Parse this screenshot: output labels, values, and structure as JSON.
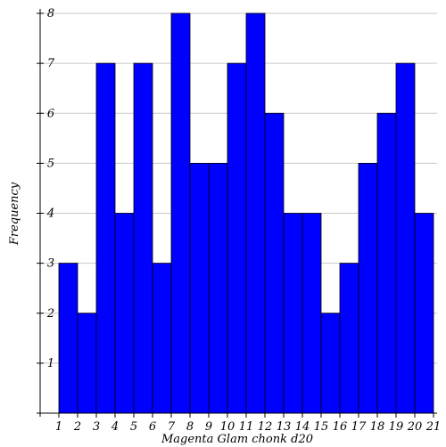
{
  "chart_data": {
    "type": "bar",
    "title": "",
    "xlabel": "Magenta Glam chonk d20",
    "ylabel": "Frequency",
    "categories": [
      "1",
      "2",
      "3",
      "4",
      "5",
      "6",
      "7",
      "8",
      "9",
      "10",
      "11",
      "12",
      "13",
      "14",
      "15",
      "16",
      "17",
      "18",
      "19",
      "20"
    ],
    "values": [
      3,
      2,
      7,
      4,
      7,
      3,
      8,
      5,
      5,
      7,
      8,
      6,
      4,
      4,
      2,
      3,
      5,
      6,
      7,
      4
    ],
    "x_ticks": [
      "1",
      "2",
      "3",
      "4",
      "5",
      "6",
      "7",
      "8",
      "9",
      "10",
      "11",
      "12",
      "13",
      "14",
      "15",
      "16",
      "17",
      "18",
      "19",
      "20",
      "21"
    ],
    "y_ticks": [
      "1",
      "2",
      "3",
      "4",
      "5",
      "6",
      "7",
      "8"
    ],
    "ylim": [
      0,
      8
    ],
    "xlim": [
      1,
      21
    ],
    "grid": "horizontal",
    "bar_color": "#0000ff"
  }
}
